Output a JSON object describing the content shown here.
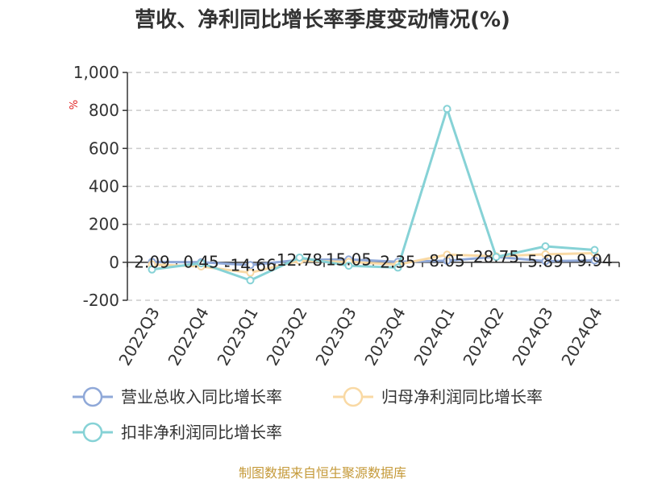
{
  "title": "营收、净利同比增长率季度变动情况(%)",
  "source": "制图数据来自恒生聚源数据库",
  "chart_data": {
    "type": "line",
    "title": "营收、净利同比增长率季度变动情况(%)",
    "y_unit": "%",
    "categories": [
      "2022Q3",
      "2022Q4",
      "2023Q1",
      "2023Q2",
      "2023Q3",
      "2023Q4",
      "2024Q1",
      "2024Q2",
      "2024Q3",
      "2024Q4"
    ],
    "ylim": [
      -200,
      1000
    ],
    "yticks": [
      -200,
      0,
      200,
      400,
      600,
      800,
      1000
    ],
    "ytick_labels": [
      "-200",
      "0",
      "200",
      "400",
      "600",
      "800",
      "1,000"
    ],
    "grid": true,
    "legend_position": "bottom",
    "series": [
      {
        "name": "营业总收入同比增长率",
        "color": "#8fa8d8",
        "values": [
          2.09,
          0.45,
          -14.66,
          12.78,
          15.05,
          2.35,
          8.05,
          28.75,
          5.89,
          9.94
        ],
        "labels": [
          "2.09",
          "0.45",
          "-14.66",
          "12.78",
          "15.05",
          "2.35",
          "8.05",
          "28.75",
          "5.89",
          "9.94"
        ]
      },
      {
        "name": "归母净利润同比增长率",
        "color": "#f9d9a4",
        "values": [
          -12,
          -22,
          -55,
          8,
          2,
          -12,
          40,
          32,
          42,
          48
        ]
      },
      {
        "name": "扣非净利润同比增长率",
        "color": "#86d2d6",
        "values": [
          -38,
          -5,
          -95,
          25,
          -18,
          -28,
          808,
          28,
          84,
          65
        ]
      }
    ]
  }
}
